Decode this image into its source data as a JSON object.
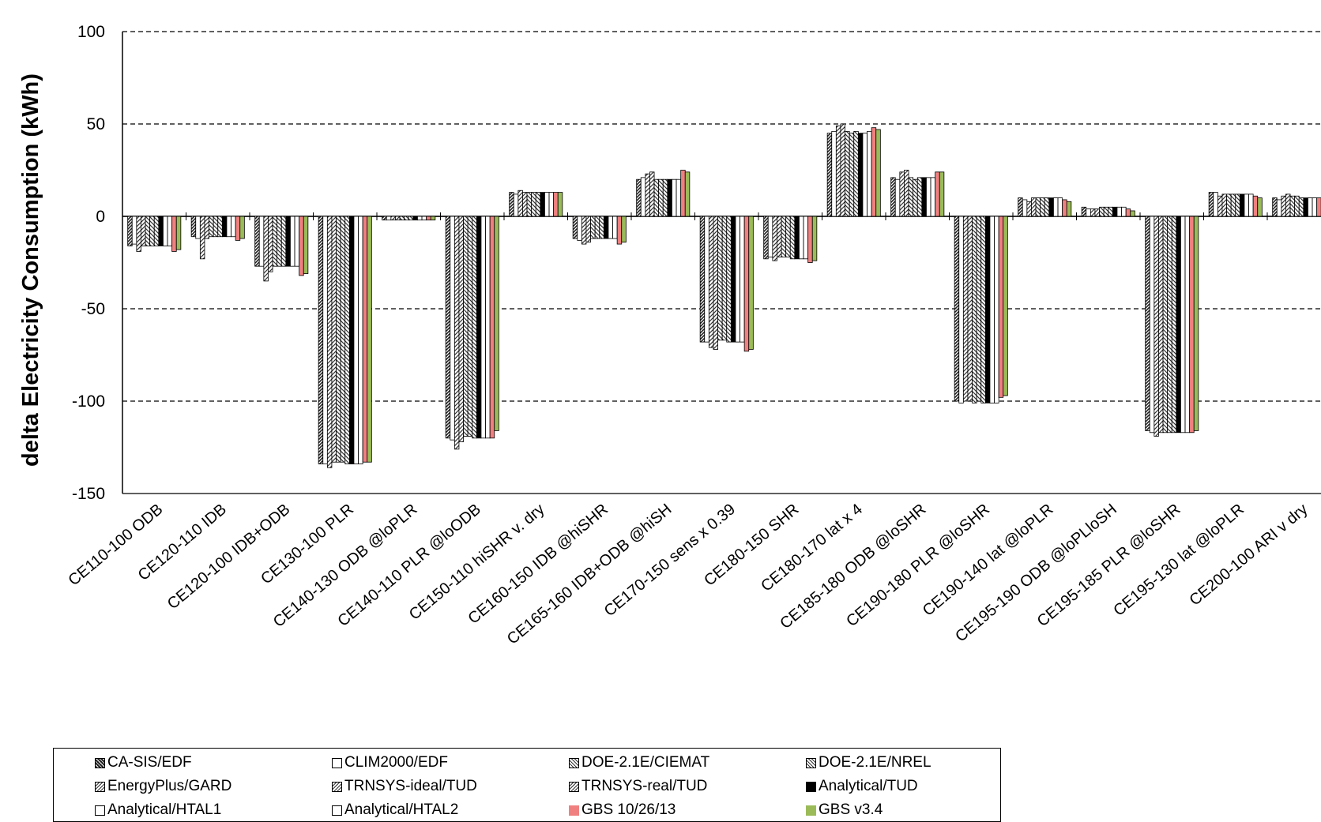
{
  "chart_data": {
    "type": "bar",
    "title": "",
    "xlabel": "",
    "ylabel": "delta Electricity Consumption (kWh)",
    "ylim": [
      -150,
      100
    ],
    "yticks": [
      100,
      50,
      0,
      -50,
      -100,
      -150
    ],
    "grid": "horizontal dashed",
    "legend_position": "bottom",
    "categories": [
      "CE110-100 ODB",
      "CE120-110 IDB",
      "CE120-100 IDB+ODB",
      "CE130-100 PLR",
      "CE140-130 ODB @loPLR",
      "CE140-110 PLR @loODB",
      "CE150-110 hiSHR v. dry",
      "CE160-150 IDB @hiSHR",
      "CE165-160 IDB+ODB @hiSH",
      "CE170-150 sens x 0.39",
      "CE180-150 SHR",
      "CE180-170 lat x 4",
      "CE185-180 ODB @loSHR",
      "CE190-180 PLR @loSHR",
      "CE190-140 lat @loPLR",
      "CE195-190 ODB @loPLloSH",
      "CE195-185 PLR @loSHR",
      "CE195-130 lat @loPLR",
      "CE200-100 ARI v dry"
    ],
    "series": [
      {
        "name": "CA-SIS/EDF",
        "fill": "hatch-dark",
        "values": [
          -16,
          -11,
          -27,
          -134,
          -2,
          -120,
          13,
          -12,
          20,
          -68,
          -23,
          45,
          21,
          -100,
          10,
          5,
          -116,
          13,
          10
        ]
      },
      {
        "name": "CLIM2000/EDF",
        "fill": "white",
        "values": [
          -15,
          -12,
          -27,
          -134,
          -2,
          -121,
          12,
          -13,
          21,
          -68,
          -22,
          46,
          20,
          -101,
          9,
          4,
          -117,
          13,
          9
        ]
      },
      {
        "name": "DOE-2.1E/CIEMAT",
        "fill": "hatch-diag",
        "values": [
          -19,
          -23,
          -35,
          -136,
          -2,
          -126,
          14,
          -15,
          23,
          -71,
          -24,
          49,
          24,
          -100,
          8,
          4,
          -119,
          11,
          11
        ]
      },
      {
        "name": "DOE-2.1E/NREL",
        "fill": "hatch-diag",
        "values": [
          -16,
          -12,
          -30,
          -133,
          -2,
          -122,
          13,
          -14,
          24,
          -72,
          -22,
          50,
          25,
          -100,
          10,
          4,
          -117,
          12,
          12
        ]
      },
      {
        "name": "EnergyPlus/GARD",
        "fill": "hatch-diag2",
        "values": [
          -16,
          -11,
          -27,
          -133,
          -2,
          -119,
          13,
          -12,
          20,
          -67,
          -22,
          46,
          21,
          -101,
          10,
          5,
          -117,
          12,
          11
        ]
      },
      {
        "name": "TRNSYS-ideal/TUD",
        "fill": "hatch-diag2",
        "values": [
          -16,
          -11,
          -27,
          -133,
          -2,
          -119,
          13,
          -12,
          20,
          -67,
          -22,
          45,
          20,
          -100,
          10,
          5,
          -117,
          12,
          11
        ]
      },
      {
        "name": "TRNSYS-real/TUD",
        "fill": "hatch-diag2",
        "values": [
          -16,
          -11,
          -27,
          -134,
          -2,
          -120,
          13,
          -12,
          20,
          -68,
          -23,
          46,
          21,
          -101,
          10,
          5,
          -117,
          12,
          10
        ]
      },
      {
        "name": "Analytical/TUD",
        "fill": "black",
        "values": [
          -16,
          -11,
          -27,
          -134,
          -2,
          -120,
          13,
          -12,
          20,
          -68,
          -23,
          45,
          21,
          -101,
          10,
          5,
          -117,
          12,
          10
        ]
      },
      {
        "name": "Analytical/HTAL1",
        "fill": "white",
        "values": [
          -16,
          -11,
          -27,
          -134,
          -2,
          -120,
          13,
          -12,
          20,
          -68,
          -23,
          45,
          21,
          -101,
          10,
          5,
          -117,
          12,
          10
        ]
      },
      {
        "name": "Analytical/HTAL2",
        "fill": "white",
        "values": [
          -16,
          -11,
          -27,
          -134,
          -2,
          -120,
          13,
          -12,
          20,
          -68,
          -23,
          46,
          21,
          -101,
          10,
          5,
          -117,
          12,
          10
        ]
      },
      {
        "name": "GBS 10/26/13",
        "fill": "#f08080",
        "values": [
          -19,
          -13,
          -32,
          -133,
          -2,
          -120,
          13,
          -15,
          25,
          -73,
          -25,
          48,
          24,
          -98,
          9,
          4,
          -117,
          11,
          10
        ]
      },
      {
        "name": "GBS v3.4",
        "fill": "#9bbb59",
        "values": [
          -18,
          -12,
          -31,
          -133,
          -2,
          -116,
          13,
          -14,
          24,
          -72,
          -24,
          47,
          24,
          -97,
          8,
          3,
          -116,
          10,
          10
        ]
      }
    ]
  }
}
